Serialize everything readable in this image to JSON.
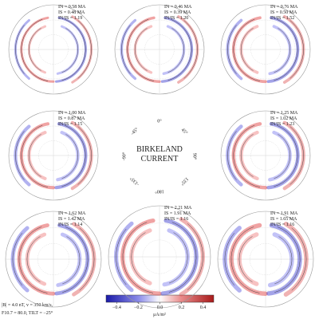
{
  "panels": [
    {
      "lines": [
        "IN = 0.58 MA",
        "IS = 0.48 MA",
        "IN/IS = 1.19"
      ]
    },
    {
      "lines": [
        "IN = 0.46 MA",
        "IS = 0.39 MA",
        "IN/IS = 1.20"
      ]
    },
    {
      "lines": [
        "IN = 0.76 MA",
        "IS = 0.50 MA",
        "IN/IS = 1.52"
      ]
    },
    {
      "lines": [
        "IN = 1.00 MA",
        "IS = 0.87 MA",
        "IN/IS = 1.15"
      ]
    },
    {
      "lines": [
        "IN = 1.25 MA",
        "IS = 1.02 MA",
        "IN/IS = 1.23"
      ]
    },
    {
      "lines": [
        "IN = 1.62 MA",
        "IS = 1.42 MA",
        "IN/IS = 1.14"
      ]
    },
    {
      "lines": [
        "IN = 2.21 MA",
        "IS = 1.91 MA",
        "IN/IS = 1.16"
      ]
    },
    {
      "lines": [
        "IN = 1.91 MA",
        "IS = 1.65 MA",
        "IN/IS = 1.16"
      ]
    }
  ],
  "center": {
    "title": [
      "BIRKELAND",
      "CURRENT"
    ],
    "angles": [
      "0°",
      "45°",
      "90°",
      "135°",
      "180°",
      "-135°",
      "-90°",
      "-45°"
    ]
  },
  "colorbar": {
    "label": "μA/m²",
    "xlim": [
      -0.5,
      0.5
    ],
    "xticks": [
      {
        "value": -0.4,
        "label": "−0.4"
      },
      {
        "value": -0.2,
        "label": "−0.2"
      },
      {
        "value": 0,
        "label": "0.0"
      },
      0.2,
      0.4
    ]
  },
  "footnote": [
    "|B| = 4.0 nT, v = 350 km/s,",
    "F10.7 = 80.0, TILT = −25°"
  ]
}
